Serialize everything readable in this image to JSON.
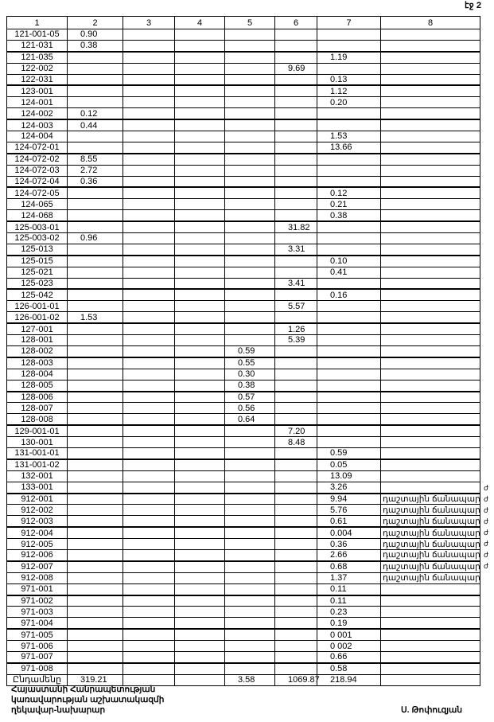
{
  "page_label": "էջ 2",
  "table": {
    "headers": [
      "1",
      "2",
      "3",
      "4",
      "5",
      "6",
      "7",
      "8"
    ],
    "rows": [
      [
        "121-001-05",
        "0.90",
        "",
        "",
        "",
        "",
        "",
        ""
      ],
      [
        "121-031",
        "0.38",
        "",
        "",
        "",
        "",
        "",
        ""
      ],
      [
        "121-035",
        "",
        "",
        "",
        "",
        "",
        "1.19",
        ""
      ],
      [
        "122-002",
        "",
        "",
        "",
        "",
        "9.69",
        "",
        ""
      ],
      [
        "122-031",
        "",
        "",
        "",
        "",
        "",
        "0.13",
        ""
      ],
      [
        "123-001",
        "",
        "",
        "",
        "",
        "",
        "1.12",
        ""
      ],
      [
        "124-001",
        "",
        "",
        "",
        "",
        "",
        "0.20",
        ""
      ],
      [
        "124-002",
        "0.12",
        "",
        "",
        "",
        "",
        "",
        ""
      ],
      [
        "124-003",
        "0.44",
        "",
        "",
        "",
        "",
        "",
        ""
      ],
      [
        "124-004",
        "",
        "",
        "",
        "",
        "",
        "1.53",
        ""
      ],
      [
        "124-072-01",
        "",
        "",
        "",
        "",
        "",
        "13.66",
        ""
      ],
      [
        "124-072-02",
        "8.55",
        "",
        "",
        "",
        "",
        "",
        ""
      ],
      [
        "124-072-03",
        "2.72",
        "",
        "",
        "",
        "",
        "",
        ""
      ],
      [
        "124-072-04",
        "0.36",
        "",
        "",
        "",
        "",
        "",
        ""
      ],
      [
        "124-072-05",
        "",
        "",
        "",
        "",
        "",
        "0.12",
        ""
      ],
      [
        "124-065",
        "",
        "",
        "",
        "",
        "",
        "0.21",
        ""
      ],
      [
        "124-068",
        "",
        "",
        "",
        "",
        "",
        "0.38",
        ""
      ],
      [
        "125-003-01",
        "",
        "",
        "",
        "",
        "31.82",
        "",
        ""
      ],
      [
        "125-003-02",
        "0.96",
        "",
        "",
        "",
        "",
        "",
        ""
      ],
      [
        "125-013",
        "",
        "",
        "",
        "",
        "3.31",
        "",
        ""
      ],
      [
        "125-015",
        "",
        "",
        "",
        "",
        "",
        "0.10",
        ""
      ],
      [
        "125-021",
        "",
        "",
        "",
        "",
        "",
        "0.41",
        ""
      ],
      [
        "125-023",
        "",
        "",
        "",
        "",
        "3.41",
        "",
        ""
      ],
      [
        "125-042",
        "",
        "",
        "",
        "",
        "",
        "0.16",
        ""
      ],
      [
        "126-001-01",
        "",
        "",
        "",
        "",
        "5.57",
        "",
        ""
      ],
      [
        "126-001-02",
        "1.53",
        "",
        "",
        "",
        "",
        "",
        ""
      ],
      [
        "127-001",
        "",
        "",
        "",
        "",
        "1.26",
        "",
        ""
      ],
      [
        "128-001",
        "",
        "",
        "",
        "",
        "5.39",
        "",
        ""
      ],
      [
        "128-002",
        "",
        "",
        "",
        "0.59",
        "",
        "",
        ""
      ],
      [
        "128-003",
        "",
        "",
        "",
        "0.55",
        "",
        "",
        ""
      ],
      [
        "128-004",
        "",
        "",
        "",
        "0.30",
        "",
        "",
        ""
      ],
      [
        "128-005",
        "",
        "",
        "",
        "0.38",
        "",
        "",
        ""
      ],
      [
        "128-006",
        "",
        "",
        "",
        "0.57",
        "",
        "",
        ""
      ],
      [
        "128-007",
        "",
        "",
        "",
        "0.56",
        "",
        "",
        ""
      ],
      [
        "128-008",
        "",
        "",
        "",
        "0.64",
        "",
        "",
        ""
      ],
      [
        "129-001-01",
        "",
        "",
        "",
        "",
        "7.20",
        "",
        ""
      ],
      [
        "130-001",
        "",
        "",
        "",
        "",
        "8.48",
        "",
        ""
      ],
      [
        "131-001-01",
        "",
        "",
        "",
        "",
        "",
        "0.59",
        ""
      ],
      [
        "131-001-02",
        "",
        "",
        "",
        "",
        "",
        "0.05",
        ""
      ],
      [
        "132-001",
        "",
        "",
        "",
        "",
        "",
        "13.09",
        ""
      ],
      [
        "133-001",
        "",
        "",
        "",
        "",
        "",
        "3.26",
        ""
      ],
      [
        "912-001",
        "",
        "",
        "",
        "",
        "",
        "9.94",
        "դաշտային ճանապար"
      ],
      [
        "912-002",
        "",
        "",
        "",
        "",
        "",
        "5.76",
        "դաշտային ճանապար"
      ],
      [
        "912-003",
        "",
        "",
        "",
        "",
        "",
        "0.61",
        "դաշտային ճանապար"
      ],
      [
        "912-004",
        "",
        "",
        "",
        "",
        "",
        "0.004",
        "դաշտային ճանապար"
      ],
      [
        "912-005",
        "",
        "",
        "",
        "",
        "",
        "0.36",
        "դաշտային ճանապար"
      ],
      [
        "912-006",
        "",
        "",
        "",
        "",
        "",
        "2.66",
        "դաշտային ճանապար"
      ],
      [
        "912-007",
        "",
        "",
        "",
        "",
        "",
        "0.68",
        "դաշտային ճանապար"
      ],
      [
        "912-008",
        "",
        "",
        "",
        "",
        "",
        "1.37",
        "դաշտային ճանապար"
      ],
      [
        "971-001",
        "",
        "",
        "",
        "",
        "",
        "0.11",
        ""
      ],
      [
        "971-002",
        "",
        "",
        "",
        "",
        "",
        "0.11",
        ""
      ],
      [
        "971-003",
        "",
        "",
        "",
        "",
        "",
        "0.23",
        ""
      ],
      [
        "971-004",
        "",
        "",
        "",
        "",
        "",
        "0.19",
        ""
      ],
      [
        "971-005",
        "",
        "",
        "",
        "",
        "",
        "0 001",
        ""
      ],
      [
        "971-006",
        "",
        "",
        "",
        "",
        "",
        "0 002",
        ""
      ],
      [
        "971-007",
        "",
        "",
        "",
        "",
        "",
        "0.66",
        ""
      ],
      [
        "971-008",
        "",
        "",
        "",
        "",
        "",
        "0.58",
        ""
      ]
    ],
    "overflow_fragment": "ժ",
    "total": [
      "Ընդամենը",
      "319.21",
      "",
      "",
      "3.58",
      "1069.87",
      "218.94",
      ""
    ]
  },
  "footer": {
    "lines": [
      "Հայաստանի Հանրապետության",
      "կառավարության աշխատակազմի",
      "ղեկավար-նախարար"
    ],
    "signatory": "Ս. Թոփուզյան"
  }
}
